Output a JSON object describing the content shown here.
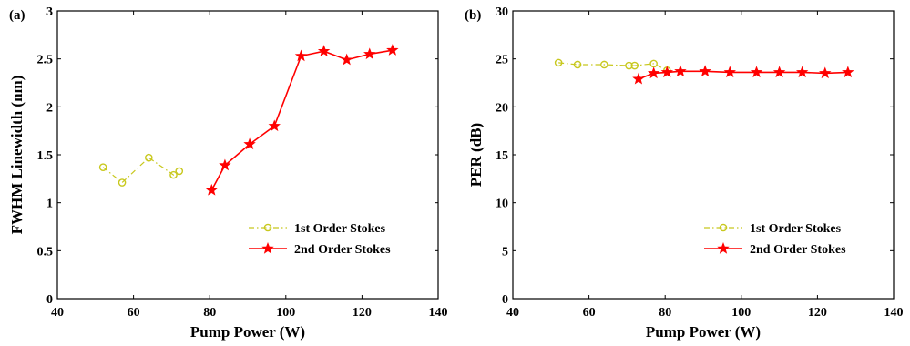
{
  "colors": {
    "series1": "#c8c81e",
    "series2": "#ff0000",
    "axis": "#000000"
  },
  "chart_data": [
    {
      "type": "line",
      "panel_label": "(a)",
      "xlabel": "Pump Power (W)",
      "ylabel": "FWHM Linewidth (nm)",
      "xlim": [
        40,
        140
      ],
      "ylim": [
        0,
        3
      ],
      "xticks": [
        40,
        60,
        80,
        100,
        120,
        140
      ],
      "yticks": [
        0,
        0.5,
        1,
        1.5,
        2,
        2.5,
        3
      ],
      "xtick_labels": [
        "40",
        "60",
        "80",
        "100",
        "120",
        "140"
      ],
      "ytick_labels": [
        "0",
        "0.5",
        "1",
        "1.5",
        "2",
        "2.5",
        "3"
      ],
      "legend_position": "lower-right",
      "series": [
        {
          "name": "1st Order Stokes",
          "marker": "circle",
          "linestyle": "dash-dot",
          "color": "#c8c81e",
          "x": [
            52,
            57,
            64,
            70.5,
            72
          ],
          "y": [
            1.37,
            1.21,
            1.47,
            1.29,
            1.33
          ]
        },
        {
          "name": "2nd Order Stokes",
          "marker": "star",
          "linestyle": "solid",
          "color": "#ff0000",
          "x": [
            80.5,
            84,
            90.5,
            97,
            104,
            110,
            116,
            122,
            128
          ],
          "y": [
            1.13,
            1.39,
            1.61,
            1.8,
            2.53,
            2.58,
            2.49,
            2.55,
            2.59
          ]
        }
      ]
    },
    {
      "type": "line",
      "panel_label": "(b)",
      "xlabel": "Pump Power (W)",
      "ylabel": "PER (dB)",
      "xlim": [
        40,
        140
      ],
      "ylim": [
        0,
        30
      ],
      "xticks": [
        40,
        60,
        80,
        100,
        120,
        140
      ],
      "yticks": [
        0,
        5,
        10,
        15,
        20,
        25,
        30
      ],
      "xtick_labels": [
        "40",
        "60",
        "80",
        "100",
        "120",
        "140"
      ],
      "ytick_labels": [
        "0",
        "5",
        "10",
        "15",
        "20",
        "25",
        "30"
      ],
      "legend_position": "lower-right",
      "series": [
        {
          "name": "1st Order Stokes",
          "marker": "circle",
          "linestyle": "dash-dot",
          "color": "#c8c81e",
          "x": [
            52,
            57,
            64,
            70.5,
            72,
            77,
            80.5
          ],
          "y": [
            24.6,
            24.4,
            24.4,
            24.3,
            24.3,
            24.5,
            23.8
          ]
        },
        {
          "name": "2nd Order Stokes",
          "marker": "star",
          "linestyle": "solid",
          "color": "#ff0000",
          "x": [
            73,
            77,
            80.5,
            84,
            90.5,
            97,
            104,
            110,
            116,
            122,
            128
          ],
          "y": [
            22.9,
            23.5,
            23.6,
            23.7,
            23.7,
            23.6,
            23.6,
            23.6,
            23.6,
            23.5,
            23.6
          ]
        }
      ]
    }
  ]
}
